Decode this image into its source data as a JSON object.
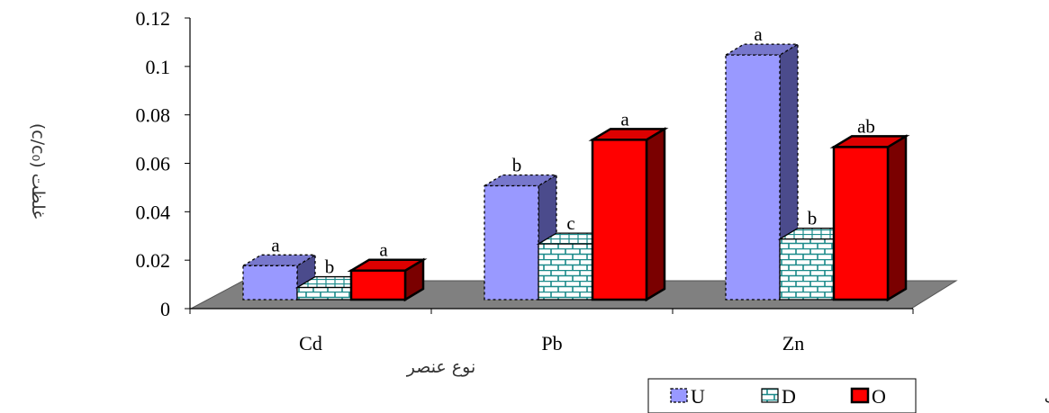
{
  "chart_data": {
    "type": "bar",
    "variant": "3d-clustered",
    "categories": [
      "Cd",
      "Pb",
      "Zn"
    ],
    "series": [
      {
        "name": "U",
        "values": [
          0.014,
          0.047,
          0.101
        ],
        "labels": [
          "a",
          "b",
          "a"
        ],
        "color": "#9999ff",
        "side": "#4b4b8c",
        "pattern": "dashed-border"
      },
      {
        "name": "D",
        "values": [
          0.005,
          0.023,
          0.025
        ],
        "labels": [
          "b",
          "c",
          "b"
        ],
        "color": "#ffffff",
        "side": "#1b8a8a",
        "pattern": "brick"
      },
      {
        "name": "O",
        "values": [
          0.012,
          0.066,
          0.063
        ],
        "labels": [
          "a",
          "a",
          "ab"
        ],
        "color": "#ff0000",
        "side": "#7a0000",
        "pattern": "solid"
      }
    ],
    "y_ticks": [
      "0",
      "0.02",
      "0.04",
      "0.06",
      "0.08",
      "0.1",
      "0.12"
    ],
    "ylim": [
      0,
      0.12
    ],
    "ylabel": "غلظت (c/c₀)",
    "xlabel": "نوع عنصر",
    "legend_title": "تیمارهای خاک",
    "legend_position": "bottom-right",
    "floor_color": "#808080",
    "grid": false
  }
}
